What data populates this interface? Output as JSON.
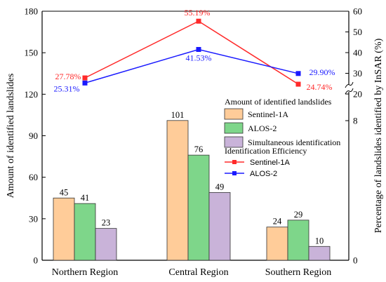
{
  "chart_data": {
    "type": "bar",
    "categories": [
      "Northern Region",
      "Central Region",
      "Southern Region"
    ],
    "y_left": {
      "label": "Amount of identified landslides",
      "range": [
        0,
        180
      ],
      "ticks": [
        0,
        30,
        60,
        90,
        120,
        150,
        180
      ]
    },
    "y_right": {
      "label": "Percentage of landslides identified by InSAR (%)",
      "ticks_lower": [
        "0",
        "8"
      ],
      "ticks_upper": [
        "20",
        "30",
        "40",
        "50",
        "60"
      ],
      "break": true
    },
    "bar_series": [
      {
        "name": "Sentinel-1A",
        "color": "#ffcc99",
        "values": [
          45,
          101,
          24
        ]
      },
      {
        "name": "ALOS-2",
        "color": "#7ed68a",
        "values": [
          41,
          76,
          29
        ]
      },
      {
        "name": "Simultaneous identification",
        "color": "#c9b3d9",
        "values": [
          23,
          49,
          10
        ]
      }
    ],
    "line_series": [
      {
        "name": "Sentinel-1A",
        "color": "#ff2a2a",
        "values": [
          27.78,
          55.19,
          24.74
        ],
        "labels": [
          "27.78%",
          "55.19%",
          "24.74%"
        ]
      },
      {
        "name": "ALOS-2",
        "color": "#1a1aff",
        "values": [
          25.31,
          41.53,
          29.9
        ],
        "labels": [
          "25.31%",
          "41.53%",
          "29.90%"
        ]
      }
    ],
    "legend": {
      "bar_title": "Amount of identified landslides",
      "line_title": "Identification Efficiency",
      "position": "right"
    }
  }
}
